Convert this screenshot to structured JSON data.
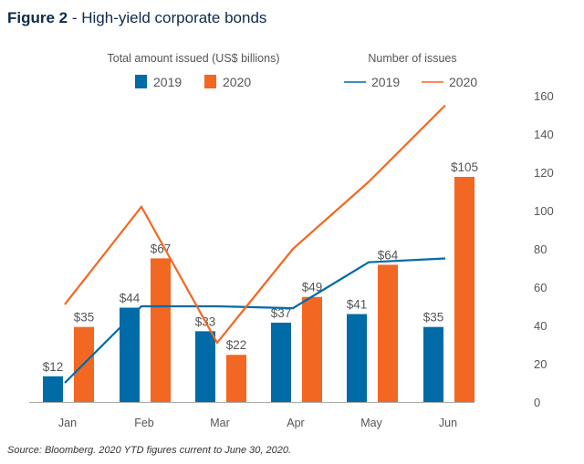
{
  "title_bold": "Figure 2",
  "title_rest": " - High-yield corporate bonds",
  "source": "Source: Bloomberg. 2020 YTD figures current to June 30, 2020.",
  "colors": {
    "2019": "#006ba6",
    "2020": "#f26722",
    "title": "#0d2a48"
  },
  "chart_data": {
    "type": "bar+line",
    "categories": [
      "Jan",
      "Feb",
      "Mar",
      "Apr",
      "May",
      "Jun"
    ],
    "bar_group_title": "Total amount issued (US$ billions)",
    "line_group_title": "Number of issues",
    "bar_series": [
      {
        "name": "2019",
        "values": [
          12,
          44,
          33,
          37,
          41,
          35
        ],
        "labels": [
          "$12",
          "$44",
          "$33",
          "$37",
          "$41",
          "$35"
        ]
      },
      {
        "name": "2020",
        "values": [
          35,
          67,
          22,
          49,
          64,
          105
        ],
        "labels": [
          "$35",
          "$67",
          "$22",
          "$49",
          "$64",
          "$105"
        ]
      }
    ],
    "line_series": [
      {
        "name": "2019",
        "values": [
          10,
          50,
          50,
          49,
          73,
          75
        ]
      },
      {
        "name": "2020",
        "values": [
          51,
          102,
          31,
          80,
          115,
          155
        ]
      }
    ],
    "right_axis": {
      "ylim": [
        0,
        160
      ],
      "ticks": [
        "0",
        "20",
        "40",
        "60",
        "80",
        "100",
        "120",
        "140",
        "160"
      ]
    },
    "left_axis_shown": false,
    "grid": false,
    "legend_placement": "top"
  }
}
